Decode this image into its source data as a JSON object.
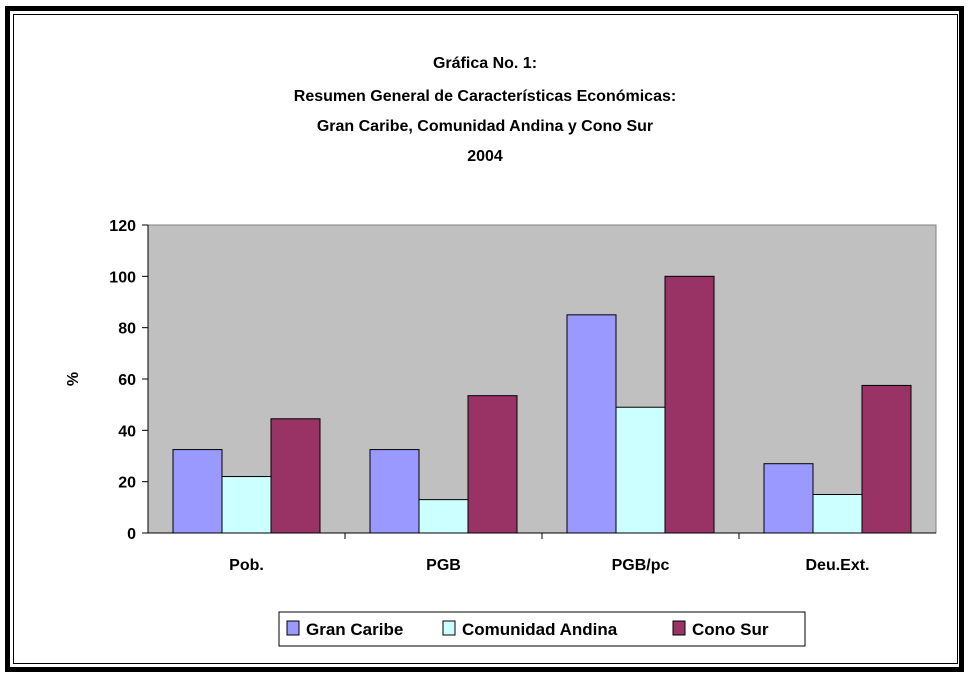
{
  "chart_data": {
    "type": "bar",
    "title_lines": [
      "Gráfica No. 1:",
      "Resumen General de Características Económicas:",
      "Gran Caribe, Comunidad Andina  y Cono Sur",
      "2004"
    ],
    "ylabel": "%",
    "xlabel": "",
    "ylim": [
      0,
      120
    ],
    "yticks": [
      "0",
      "20",
      "40",
      "60",
      "80",
      "100",
      "120"
    ],
    "categories": [
      "Pob.",
      "PGB",
      "PGB/pc",
      "Deu.Ext."
    ],
    "series": [
      {
        "name": "Gran Caribe",
        "color": "#9999ff",
        "values": [
          32.5,
          32.5,
          85,
          27
        ]
      },
      {
        "name": "Comunidad Andina",
        "color": "#ccffff",
        "values": [
          22,
          13,
          49,
          15
        ]
      },
      {
        "name": "Cono Sur",
        "color": "#993366",
        "values": [
          44.5,
          53.5,
          100,
          57.5
        ]
      }
    ],
    "plot_background": "#c0c0c0",
    "legend_position": "bottom",
    "grid": false
  }
}
